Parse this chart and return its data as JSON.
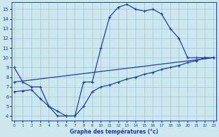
{
  "bg_color": "#cce8ee",
  "grid_color": "#9ac8d4",
  "line_color": "#1a3aaf",
  "xlabel": "Graphe des températures (°c)",
  "x_ticks": [
    0,
    1,
    2,
    3,
    4,
    5,
    6,
    7,
    8,
    9,
    10,
    11,
    12,
    13,
    14,
    15,
    16,
    17,
    18,
    19,
    20,
    21,
    22,
    23
  ],
  "y_ticks": [
    4,
    5,
    6,
    7,
    8,
    9,
    10,
    11,
    12,
    13,
    14,
    15
  ],
  "ylim": [
    3.5,
    15.7
  ],
  "xlim": [
    -0.3,
    23.3
  ],
  "line1_x": [
    0,
    1,
    2,
    3,
    4,
    5,
    6,
    7,
    8,
    9,
    10,
    11,
    12,
    13,
    14,
    15,
    16,
    17,
    18,
    19,
    20,
    21,
    22,
    23
  ],
  "line1_y": [
    9,
    7.5,
    7,
    7,
    5,
    4,
    4,
    4,
    7.5,
    7.5,
    11,
    14.2,
    15.2,
    15.5,
    15,
    14.8,
    15,
    14.5,
    13,
    12,
    10,
    10,
    10,
    10
  ],
  "line2_x": [
    0,
    1,
    2,
    3,
    4,
    5,
    6,
    7,
    8,
    9,
    10,
    11,
    12,
    13,
    14,
    15,
    16,
    17,
    18,
    19,
    20,
    21,
    22,
    23
  ],
  "line2_y": [
    6.5,
    6.6,
    6.7,
    5.8,
    5,
    4.5,
    4,
    4,
    5,
    6.5,
    7,
    7.2,
    7.5,
    7.8,
    8,
    8.3,
    8.5,
    8.8,
    9,
    9.2,
    9.5,
    9.7,
    10,
    10
  ],
  "line3_x": [
    0,
    23
  ],
  "line3_y": [
    7.5,
    10
  ]
}
